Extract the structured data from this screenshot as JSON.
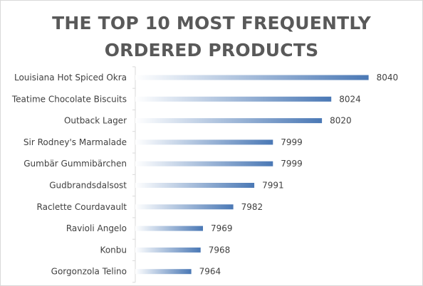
{
  "chart_data": {
    "type": "bar",
    "orientation": "horizontal",
    "title_lines": [
      "THE TOP 10 MOST FREQUENTLY",
      "ORDERED PRODUCTS"
    ],
    "categories": [
      "Louisiana Hot Spiced Okra",
      "Teatime Chocolate Biscuits",
      "Outback Lager",
      "Sir Rodney's Marmalade",
      "Gumbär Gummibärchen",
      "Gudbrandsdalsost",
      "Raclette Courdavault",
      "Ravioli Angelo",
      "Konbu",
      "Gorgonzola Telino"
    ],
    "values": [
      8040,
      8024,
      8020,
      7999,
      7999,
      7991,
      7982,
      7969,
      7968,
      7964
    ],
    "xlim": [
      7940,
      8045
    ],
    "xlabel": "",
    "ylabel": "",
    "grid": false,
    "data_labels": true,
    "bar_gradient": [
      "#ffffff",
      "#4a78b5"
    ],
    "axis_color": "#d9d9d9",
    "text_color": "#404040"
  }
}
